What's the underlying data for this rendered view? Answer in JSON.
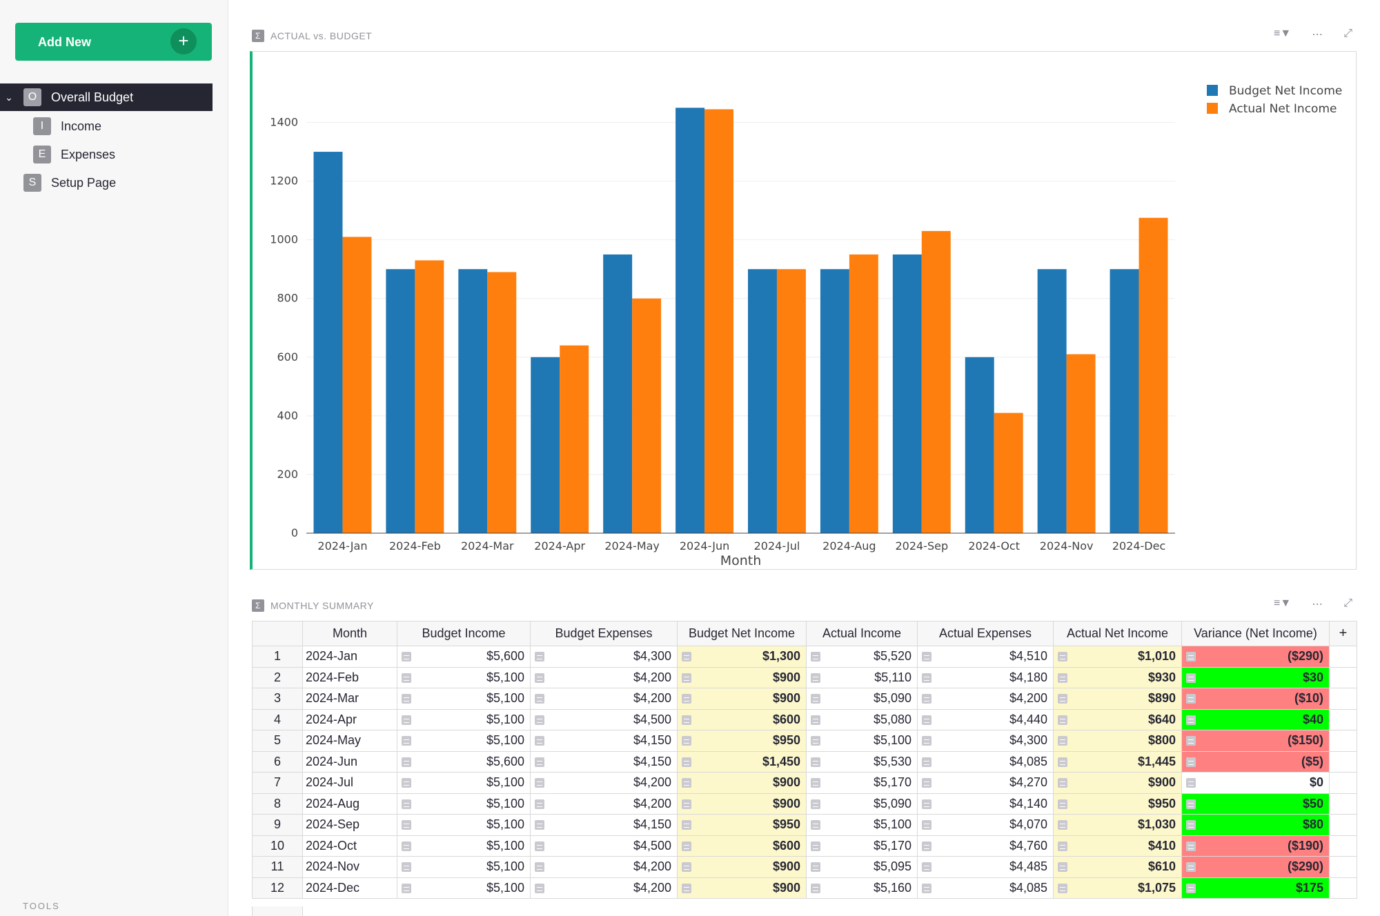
{
  "sidebar": {
    "add_new_label": "Add New",
    "pages": [
      {
        "initial": "O",
        "label": "Overall Budget"
      },
      {
        "initial": "I",
        "label": "Income"
      },
      {
        "initial": "E",
        "label": "Expenses"
      },
      {
        "initial": "S",
        "label": "Setup Page"
      }
    ],
    "tools_label": "TOOLS"
  },
  "chart_section": {
    "title": "ACTUAL vs. BUDGET"
  },
  "table_section": {
    "title": "MONTHLY SUMMARY"
  },
  "chart_data": {
    "type": "bar",
    "xlabel": "Month",
    "ylabel": "",
    "ylim": [
      0,
      1500
    ],
    "yticks": [
      0,
      200,
      400,
      600,
      800,
      1000,
      1200,
      1400
    ],
    "legend_position": "top-right",
    "grid": true,
    "categories": [
      "2024-Jan",
      "2024-Feb",
      "2024-Mar",
      "2024-Apr",
      "2024-May",
      "2024-Jun",
      "2024-Jul",
      "2024-Aug",
      "2024-Sep",
      "2024-Oct",
      "2024-Nov",
      "2024-Dec"
    ],
    "series": [
      {
        "name": "Budget Net Income",
        "color": "#1f77b4",
        "values": [
          1300,
          900,
          900,
          600,
          950,
          1450,
          900,
          900,
          950,
          600,
          900,
          900
        ]
      },
      {
        "name": "Actual Net Income",
        "color": "#ff7f0e",
        "values": [
          1010,
          930,
          890,
          640,
          800,
          1445,
          900,
          950,
          1030,
          410,
          610,
          1075
        ]
      }
    ]
  },
  "table": {
    "columns": [
      "Month",
      "Budget Income",
      "Budget Expenses",
      "Budget Net Income",
      "Actual Income",
      "Actual Expenses",
      "Actual Net Income",
      "Variance (Net Income)"
    ],
    "add_column": "+",
    "colors": {
      "positive": "#00ff00",
      "negative": "#ff8080",
      "zero": "#ffffff",
      "net_income_bg": "#fdf8cc"
    },
    "rows": [
      {
        "n": "1",
        "month": "2024-Jan",
        "bi": "$5,600",
        "be": "$4,300",
        "bni": "$1,300",
        "ai": "$5,520",
        "ae": "$4,510",
        "ani": "$1,010",
        "var": "($290)",
        "sign": "negative"
      },
      {
        "n": "2",
        "month": "2024-Feb",
        "bi": "$5,100",
        "be": "$4,200",
        "bni": "$900",
        "ai": "$5,110",
        "ae": "$4,180",
        "ani": "$930",
        "var": "$30",
        "sign": "positive"
      },
      {
        "n": "3",
        "month": "2024-Mar",
        "bi": "$5,100",
        "be": "$4,200",
        "bni": "$900",
        "ai": "$5,090",
        "ae": "$4,200",
        "ani": "$890",
        "var": "($10)",
        "sign": "negative"
      },
      {
        "n": "4",
        "month": "2024-Apr",
        "bi": "$5,100",
        "be": "$4,500",
        "bni": "$600",
        "ai": "$5,080",
        "ae": "$4,440",
        "ani": "$640",
        "var": "$40",
        "sign": "positive"
      },
      {
        "n": "5",
        "month": "2024-May",
        "bi": "$5,100",
        "be": "$4,150",
        "bni": "$950",
        "ai": "$5,100",
        "ae": "$4,300",
        "ani": "$800",
        "var": "($150)",
        "sign": "negative"
      },
      {
        "n": "6",
        "month": "2024-Jun",
        "bi": "$5,600",
        "be": "$4,150",
        "bni": "$1,450",
        "ai": "$5,530",
        "ae": "$4,085",
        "ani": "$1,445",
        "var": "($5)",
        "sign": "negative"
      },
      {
        "n": "7",
        "month": "2024-Jul",
        "bi": "$5,100",
        "be": "$4,200",
        "bni": "$900",
        "ai": "$5,170",
        "ae": "$4,270",
        "ani": "$900",
        "var": "$0",
        "sign": "zero"
      },
      {
        "n": "8",
        "month": "2024-Aug",
        "bi": "$5,100",
        "be": "$4,200",
        "bni": "$900",
        "ai": "$5,090",
        "ae": "$4,140",
        "ani": "$950",
        "var": "$50",
        "sign": "positive"
      },
      {
        "n": "9",
        "month": "2024-Sep",
        "bi": "$5,100",
        "be": "$4,150",
        "bni": "$950",
        "ai": "$5,100",
        "ae": "$4,070",
        "ani": "$1,030",
        "var": "$80",
        "sign": "positive"
      },
      {
        "n": "10",
        "month": "2024-Oct",
        "bi": "$5,100",
        "be": "$4,500",
        "bni": "$600",
        "ai": "$5,170",
        "ae": "$4,760",
        "ani": "$410",
        "var": "($190)",
        "sign": "negative"
      },
      {
        "n": "11",
        "month": "2024-Nov",
        "bi": "$5,100",
        "be": "$4,200",
        "bni": "$900",
        "ai": "$5,095",
        "ae": "$4,485",
        "ani": "$610",
        "var": "($290)",
        "sign": "negative"
      },
      {
        "n": "12",
        "month": "2024-Dec",
        "bi": "$5,100",
        "be": "$4,200",
        "bni": "$900",
        "ai": "$5,160",
        "ae": "$4,085",
        "ani": "$1,075",
        "var": "$175",
        "sign": "positive"
      }
    ]
  }
}
